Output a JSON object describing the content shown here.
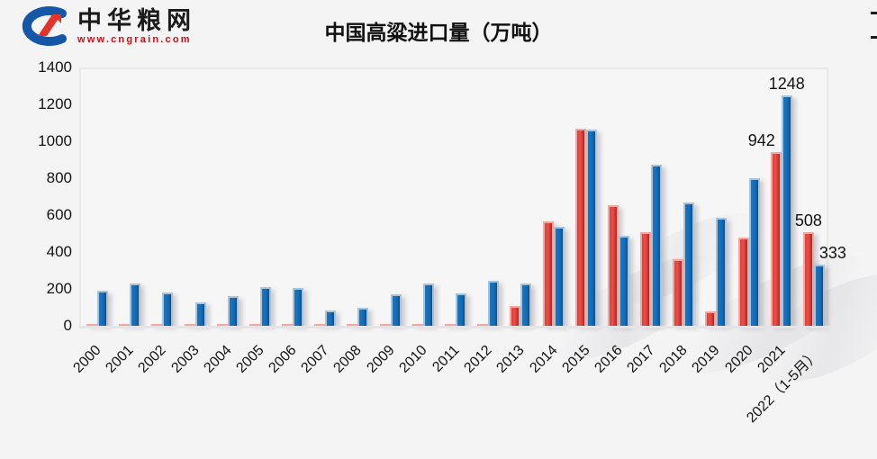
{
  "header": {
    "logo_name": "中华粮网",
    "logo_url": "www.cngrain.com"
  },
  "chart_data": {
    "type": "bar",
    "title": "中国高粱进口量（万吨）",
    "xlabel": "",
    "ylabel": "",
    "ylim": [
      0,
      1400
    ],
    "yticks": [
      0,
      200,
      400,
      600,
      800,
      1000,
      1200,
      1400
    ],
    "grid": false,
    "legend": "none",
    "categories": [
      "2000",
      "2001",
      "2002",
      "2003",
      "2004",
      "2005",
      "2006",
      "2007",
      "2008",
      "2009",
      "2010",
      "2011",
      "2012",
      "2013",
      "2014",
      "2015",
      "2016",
      "2017",
      "2018",
      "2019",
      "2020",
      "2021",
      "2022（1-5月）"
    ],
    "series": [
      {
        "name": "red-series",
        "color": "#e0453f",
        "values": [
          8,
          8,
          8,
          6,
          6,
          8,
          8,
          6,
          6,
          8,
          6,
          6,
          12,
          105,
          565,
          1070,
          655,
          505,
          360,
          80,
          480,
          942,
          508
        ]
      },
      {
        "name": "blue-series",
        "color": "#1273c4",
        "values": [
          190,
          230,
          180,
          125,
          160,
          210,
          205,
          85,
          100,
          170,
          230,
          175,
          245,
          230,
          535,
          1065,
          490,
          875,
          670,
          585,
          800,
          1248,
          333
        ]
      }
    ],
    "data_labels": [
      {
        "category_index": 21,
        "series_index": 0,
        "text": "942",
        "dx": -16
      },
      {
        "category_index": 21,
        "series_index": 1,
        "text": "1248",
        "dx": 0
      },
      {
        "category_index": 22,
        "series_index": 0,
        "text": "508",
        "dx": 0
      },
      {
        "category_index": 22,
        "series_index": 1,
        "text": "333",
        "dx": 15
      }
    ]
  }
}
